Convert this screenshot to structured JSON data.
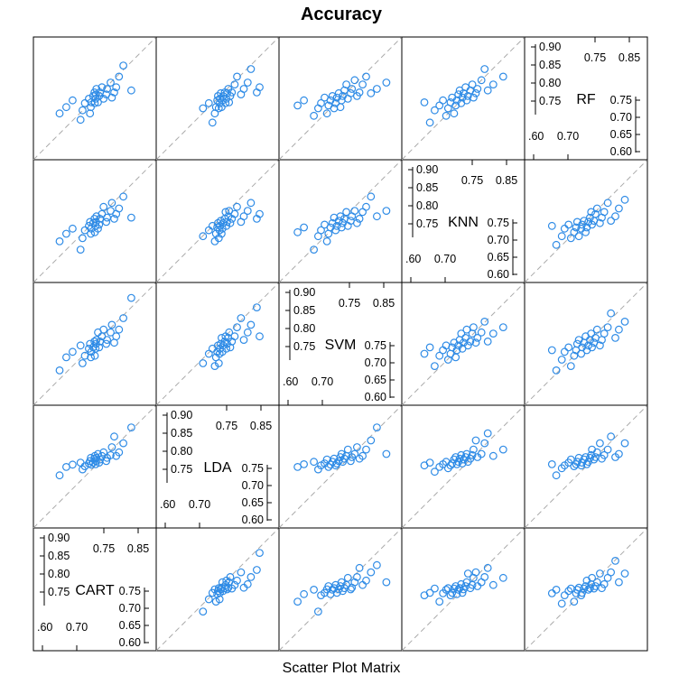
{
  "chart_data": {
    "type": "scatter",
    "title": "Accuracy",
    "xlabel": "Scatter Plot Matrix",
    "variables": [
      "CART",
      "LDA",
      "SVM",
      "KNN",
      "RF"
    ],
    "axis_range": [
      0.595,
      0.905
    ],
    "reference_line": "y = x (dashed gray)",
    "point_color": "#2e8be6",
    "line_color": "#aaaaaa",
    "tick_labels": {
      "top_major": [
        "0.90",
        "0.85",
        "0.80",
        "0.75"
      ],
      "bottom_major": [
        "0.75",
        "0.70",
        "0.65",
        "0.60"
      ],
      "top_minor": [
        "0.75",
        "0.85"
      ],
      "bottom_minor": [
        ".60",
        "0.70"
      ]
    },
    "observations": {
      "CART": [
        0.661,
        0.678,
        0.694,
        0.714,
        0.719,
        0.725,
        0.735,
        0.738,
        0.74,
        0.741,
        0.746,
        0.749,
        0.75,
        0.752,
        0.753,
        0.754,
        0.758,
        0.761,
        0.763,
        0.768,
        0.772,
        0.779,
        0.781,
        0.79,
        0.793,
        0.799,
        0.804,
        0.811,
        0.822,
        0.842
      ],
      "LDA": [
        0.713,
        0.728,
        0.737,
        0.743,
        0.746,
        0.749,
        0.751,
        0.753,
        0.755,
        0.756,
        0.758,
        0.76,
        0.762,
        0.764,
        0.768,
        0.77,
        0.772,
        0.774,
        0.777,
        0.779,
        0.782,
        0.786,
        0.793,
        0.799,
        0.809,
        0.816,
        0.826,
        0.834,
        0.849,
        0.856
      ],
      "SVM": [
        0.642,
        0.658,
        0.683,
        0.694,
        0.701,
        0.71,
        0.716,
        0.72,
        0.725,
        0.73,
        0.734,
        0.738,
        0.741,
        0.746,
        0.75,
        0.753,
        0.756,
        0.76,
        0.765,
        0.769,
        0.776,
        0.779,
        0.786,
        0.792,
        0.798,
        0.806,
        0.815,
        0.827,
        0.842,
        0.866
      ],
      "KNN": [
        0.652,
        0.666,
        0.678,
        0.69,
        0.699,
        0.707,
        0.712,
        0.718,
        0.722,
        0.727,
        0.731,
        0.734,
        0.738,
        0.741,
        0.745,
        0.748,
        0.751,
        0.756,
        0.759,
        0.762,
        0.768,
        0.773,
        0.776,
        0.782,
        0.786,
        0.796,
        0.804,
        0.812,
        0.826,
        0.851
      ],
      "RF": [
        0.664,
        0.675,
        0.689,
        0.696,
        0.706,
        0.712,
        0.72,
        0.725,
        0.728,
        0.732,
        0.738,
        0.74,
        0.745,
        0.749,
        0.752,
        0.756,
        0.76,
        0.763,
        0.765,
        0.77,
        0.774,
        0.778,
        0.785,
        0.79,
        0.796,
        0.805,
        0.813,
        0.824,
        0.833,
        0.848
      ]
    }
  }
}
